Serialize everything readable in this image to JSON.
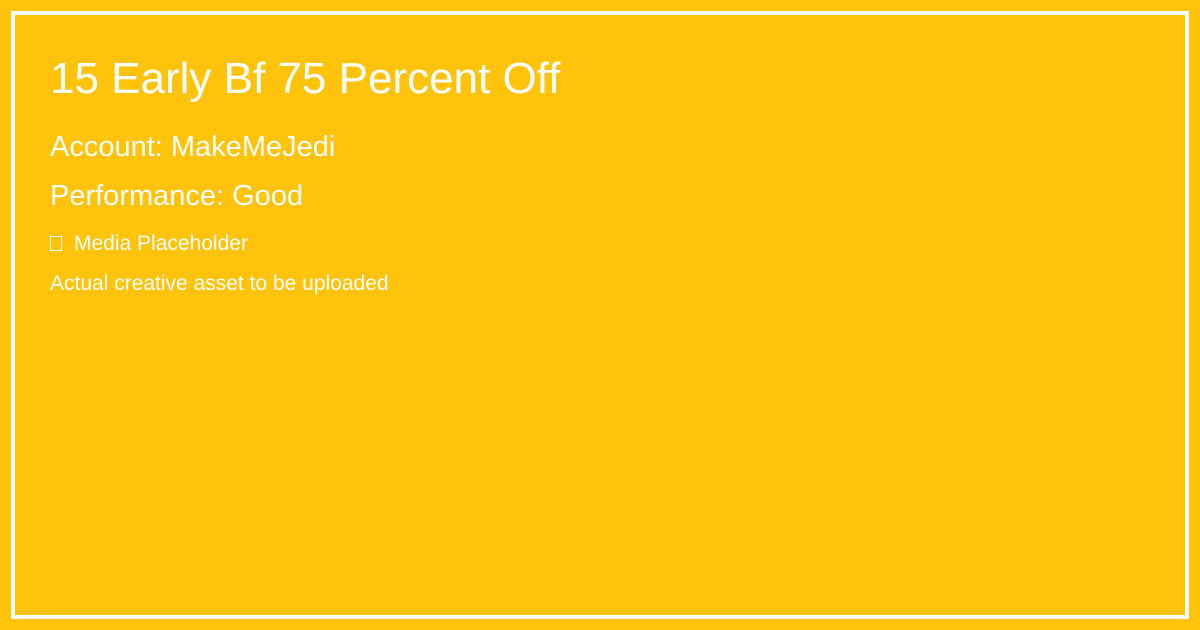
{
  "card": {
    "title": "15 Early Bf 75 Percent Off",
    "account": "Account: MakeMeJedi",
    "performance": "Performance: Good",
    "media_placeholder": {
      "icon": "media-placeholder-icon",
      "label": "Media Placeholder"
    },
    "note": "Actual creative asset to be uploaded"
  },
  "colors": {
    "background": "#FFC30B",
    "text": "#FFFFFF",
    "border": "#FFFFFF"
  }
}
